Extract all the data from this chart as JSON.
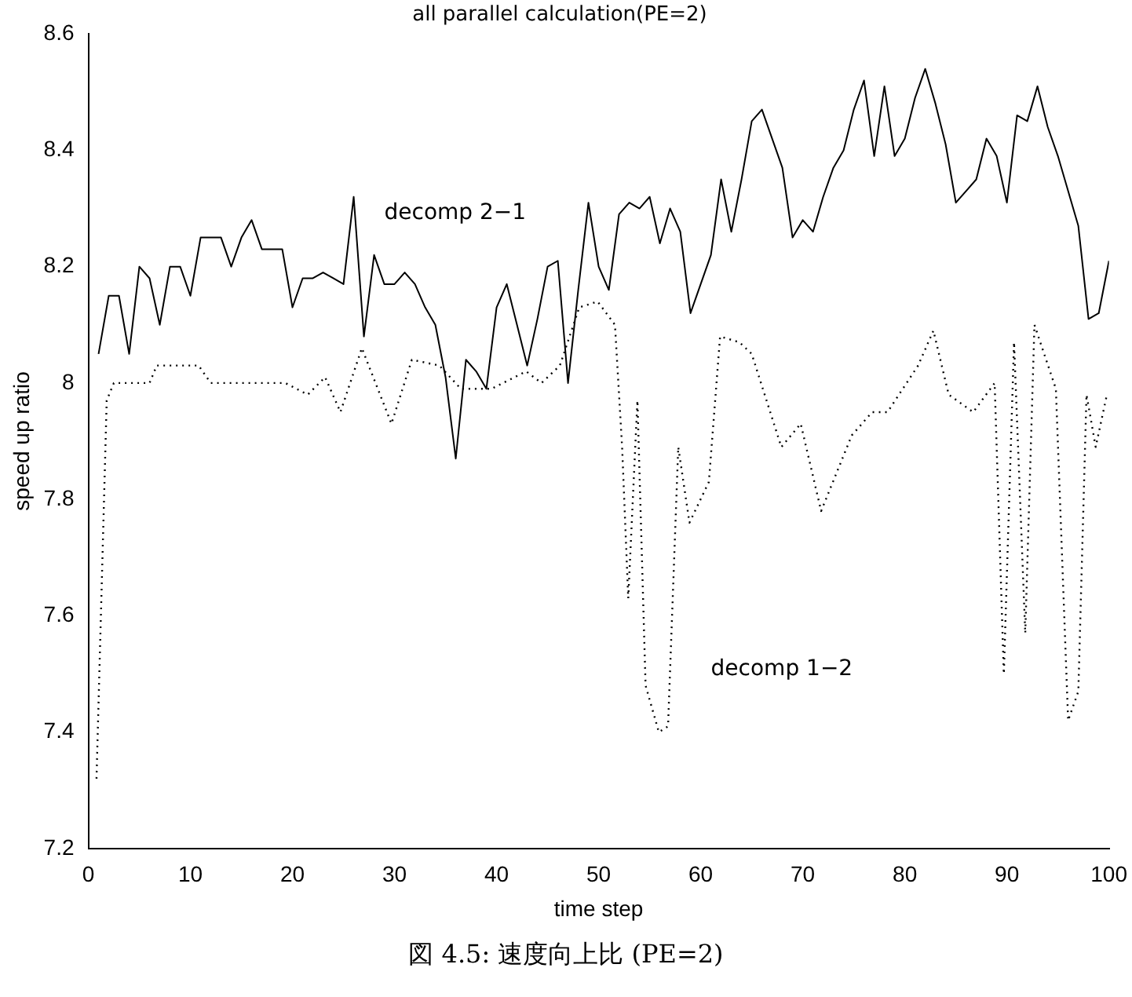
{
  "chart_data": {
    "type": "line",
    "title": "all parallel calculation(PE=2)",
    "xlabel": "time step",
    "ylabel": "speed up ratio",
    "xlim": [
      0,
      100
    ],
    "xticks": [
      0,
      10,
      20,
      30,
      40,
      50,
      60,
      70,
      80,
      90,
      100
    ],
    "ylim": [
      7.2,
      8.6
    ],
    "yticks": [
      7.2,
      7.4,
      7.6,
      7.8,
      8,
      8.2,
      8.4,
      8.6
    ],
    "grid": false,
    "legend": false,
    "marker": "none",
    "annotations": [
      "図 4.5: 速度向上比 (PE=2)"
    ],
    "series": [
      {
        "name": "decomp 2−1",
        "color": "#000000",
        "line_style": "solid",
        "x": [
          1,
          2,
          3,
          4,
          5,
          6,
          7,
          8,
          9,
          10,
          11,
          12,
          13,
          14,
          15,
          16,
          17,
          18,
          19,
          20,
          21,
          22,
          23,
          24,
          25,
          26,
          27,
          28,
          29,
          30,
          31,
          32,
          33,
          34,
          35,
          36,
          37,
          38,
          39,
          40,
          41,
          42,
          43,
          44,
          45,
          46,
          47,
          48,
          49,
          50,
          51,
          52,
          53,
          54,
          55,
          56,
          57,
          58,
          59,
          60,
          61,
          62,
          63,
          64,
          65,
          66,
          67,
          68,
          69,
          70,
          71,
          72,
          73,
          74,
          75,
          76,
          77,
          78,
          79,
          80,
          81,
          82,
          83,
          84,
          85,
          86,
          87,
          88,
          89,
          90,
          91,
          92,
          93,
          94,
          95,
          96,
          97,
          98,
          99,
          100
        ],
        "values": [
          8.05,
          8.15,
          8.15,
          8.05,
          8.2,
          8.18,
          8.1,
          8.2,
          8.2,
          8.15,
          8.25,
          8.25,
          8.25,
          8.2,
          8.25,
          8.28,
          8.23,
          8.23,
          8.23,
          8.13,
          8.18,
          8.18,
          8.19,
          8.18,
          8.17,
          8.32,
          8.08,
          8.22,
          8.17,
          8.17,
          8.19,
          8.17,
          8.13,
          8.1,
          8.01,
          7.87,
          8.04,
          8.02,
          7.99,
          8.13,
          8.17,
          8.1,
          8.03,
          8.11,
          8.2,
          8.21,
          8,
          8.16,
          8.31,
          8.2,
          8.16,
          8.29,
          8.31,
          8.3,
          8.32,
          8.24,
          8.3,
          8.26,
          8.12,
          8.17,
          8.22,
          8.35,
          8.26,
          8.35,
          8.45,
          8.47,
          8.42,
          8.37,
          8.25,
          8.28,
          8.26,
          8.32,
          8.37,
          8.4,
          8.47,
          8.52,
          8.39,
          8.51,
          8.39,
          8.42,
          8.49,
          8.54,
          8.48,
          8.41,
          8.31,
          8.33,
          8.35,
          8.42,
          8.39,
          8.31,
          8.46,
          8.45,
          8.51,
          8.44,
          8.39,
          8.33,
          8.27,
          8.11,
          8.12,
          8.21
        ]
      },
      {
        "name": "decomp 1−2",
        "color": "#000000",
        "line_style": "dotted",
        "x": [
          0.8,
          1.8,
          2.5,
          6,
          6.7,
          10.8,
          12,
          19.3,
          21.5,
          23.2,
          24.7,
          26.8,
          29.7,
          31.7,
          34.4,
          36.5,
          39.5,
          42.9,
          44.4,
          46.2,
          48.1,
          49.9,
          51.6,
          52.3,
          52.9,
          53.8,
          54.6,
          55.9,
          56.8,
          57.8,
          58.9,
          60.8,
          61.9,
          63.8,
          65,
          67.9,
          69.8,
          71.8,
          74.8,
          76.8,
          78.3,
          81.3,
          82.8,
          84.3,
          86.7,
          88.8,
          89.7,
          90.7,
          91.8,
          92.7,
          94.8,
          96,
          97,
          97.8,
          98.7,
          99.8
        ],
        "values": [
          7.32,
          7.97,
          8,
          8,
          8.03,
          8.03,
          8,
          8,
          7.98,
          8.01,
          7.95,
          8.06,
          7.93,
          8.04,
          8.03,
          7.99,
          7.99,
          8.02,
          8,
          8.03,
          8.13,
          8.14,
          8.1,
          7.89,
          7.63,
          7.97,
          7.48,
          7.4,
          7.41,
          7.89,
          7.76,
          7.83,
          8.08,
          8.07,
          8.05,
          7.89,
          7.93,
          7.78,
          7.91,
          7.95,
          7.95,
          8.03,
          8.09,
          7.98,
          7.95,
          8,
          7.5,
          8.07,
          7.57,
          8.1,
          7.99,
          7.42,
          7.47,
          7.98,
          7.89,
          7.98
        ]
      }
    ]
  }
}
